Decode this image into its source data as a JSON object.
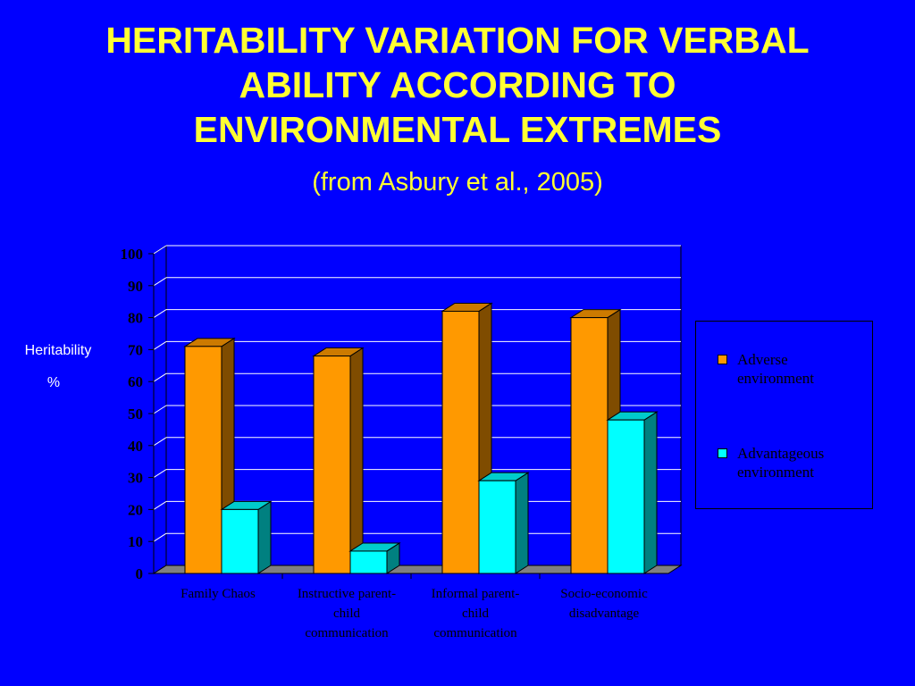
{
  "slide": {
    "title_lines": [
      "HERITABILITY VARIATION FOR VERBAL",
      "ABILITY ACCORDING TO",
      "ENVIRONMENTAL EXTREMES"
    ],
    "subtitle": "(from Asbury et al., 2005)",
    "ylabel_line1": "Heritability",
    "ylabel_line2": "%"
  },
  "colors": {
    "background": "#0000FF",
    "title": "#FFFF33",
    "plot_background": "#0000FF",
    "gridline": "#FFFFFF",
    "adverse_front": "#FF9900",
    "adverse_side": "#7F4C00",
    "adverse_top": "#CC7A00",
    "advantageous_front": "#00FFFF",
    "advantageous_side": "#008080",
    "advantageous_top": "#00CCCC",
    "floor": "#808080"
  },
  "chart_data": {
    "type": "bar",
    "categories": [
      [
        "Family Chaos"
      ],
      [
        "Instructive parent-",
        "child",
        "communication"
      ],
      [
        "Informal parent-",
        "child",
        "communication"
      ],
      [
        "Socio-economic",
        "disadvantage"
      ]
    ],
    "series": [
      {
        "name_lines": [
          "Adverse",
          "environment"
        ],
        "values": [
          71,
          68,
          82,
          80
        ]
      },
      {
        "name_lines": [
          "Advantageous",
          "environment"
        ],
        "values": [
          20,
          7,
          29,
          48
        ]
      }
    ],
    "ylim": [
      0,
      100
    ],
    "yticks": [
      "0",
      "10",
      "20",
      "30",
      "40",
      "50",
      "60",
      "70",
      "80",
      "90",
      "100"
    ],
    "grid": true,
    "legend_position": "right",
    "style": "3d-clustered-column"
  }
}
